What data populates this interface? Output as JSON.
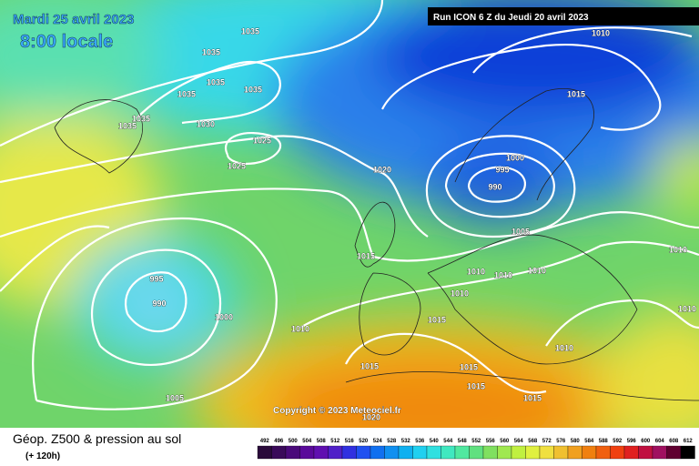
{
  "header": {
    "date": "Mardi 25 avril 2023",
    "time": "8:00 locale",
    "run": "Run ICON 6 Z du Jeudi 20 avril 2023"
  },
  "copyright": "Copyright © 2023 Meteociel.fr",
  "footer": {
    "title": "Géop. Z500 & pression au sol",
    "lead": "(+ 120h)"
  },
  "isobar_labels": [
    1035,
    1035,
    1035,
    1035,
    1035,
    1035,
    1035,
    1030,
    1025,
    1025,
    1020,
    1015,
    1015,
    1015,
    1015,
    1015,
    1015,
    1015,
    1010,
    1010,
    1010,
    1010,
    1010,
    1010,
    1010,
    1010,
    1010,
    1005,
    1005,
    1000,
    1000,
    995,
    995,
    990,
    990,
    1020
  ],
  "scale": [
    492,
    496,
    500,
    504,
    508,
    512,
    516,
    520,
    524,
    528,
    532,
    536,
    540,
    544,
    548,
    552,
    556,
    560,
    564,
    568,
    572,
    576,
    580,
    584,
    588,
    592,
    596,
    600,
    604,
    608,
    612
  ]
}
